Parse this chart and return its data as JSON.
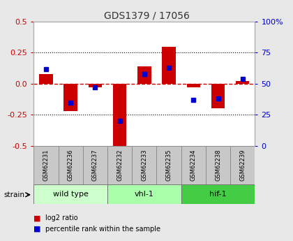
{
  "title": "GDS1379 / 17056",
  "samples": [
    "GSM62231",
    "GSM62236",
    "GSM62237",
    "GSM62232",
    "GSM62233",
    "GSM62235",
    "GSM62234",
    "GSM62238",
    "GSM62239"
  ],
  "log2_ratios": [
    0.08,
    -0.22,
    -0.03,
    -0.5,
    0.14,
    0.3,
    -0.03,
    -0.2,
    0.02
  ],
  "percentile_ranks": [
    62,
    35,
    47,
    20,
    58,
    63,
    37,
    38,
    54
  ],
  "groups": [
    {
      "label": "wild type",
      "start": 0,
      "end": 3,
      "color": "#ccffcc"
    },
    {
      "label": "vhl-1",
      "start": 3,
      "end": 6,
      "color": "#aaffaa"
    },
    {
      "label": "hif-1",
      "start": 6,
      "end": 9,
      "color": "#44cc44"
    }
  ],
  "ylim": [
    -0.5,
    0.5
  ],
  "yticks_left": [
    -0.5,
    -0.25,
    0.0,
    0.25,
    0.5
  ],
  "yticks_right_vals": [
    -0.5,
    -0.25,
    0.0,
    0.25,
    0.5
  ],
  "yticks_right_labels": [
    "0",
    "25",
    "50",
    "75",
    "100%"
  ],
  "bar_color": "#cc0000",
  "dot_color": "#0000cc",
  "zero_line_color": "#cc0000",
  "grid_color": "#000000",
  "bg_color": "#e8e8e8",
  "plot_bg": "#ffffff",
  "title_color": "#333333",
  "left_label_color": "#cc0000",
  "right_label_color": "#0000cc",
  "sample_box_color": "#c8c8c8",
  "sample_box_edge": "#888888"
}
